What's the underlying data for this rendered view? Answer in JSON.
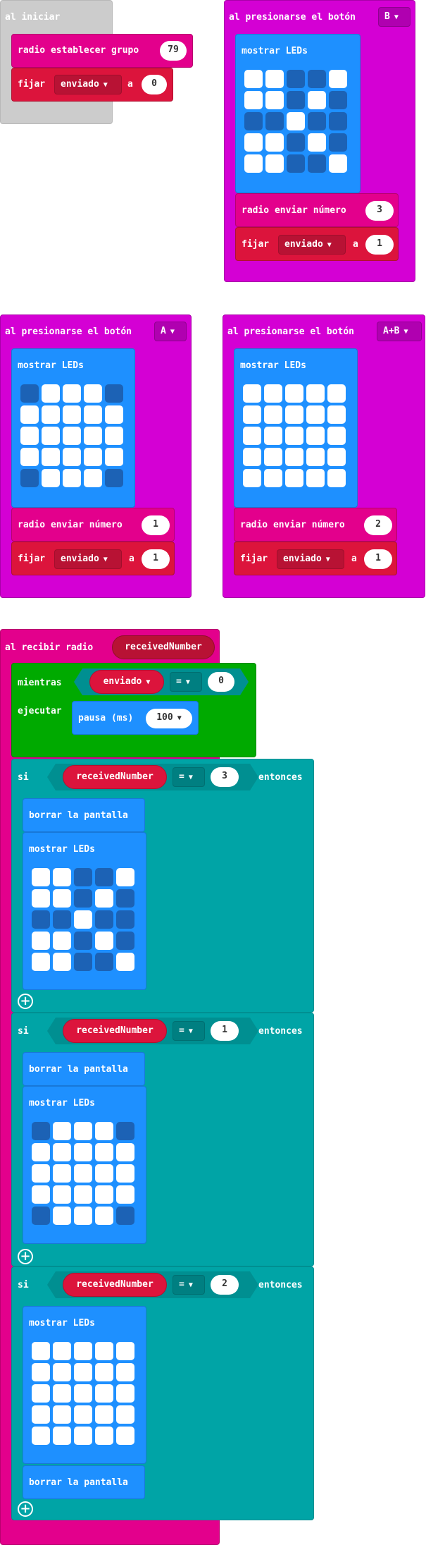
{
  "colors": {
    "event": "#d400d4",
    "radio": "#e3008c",
    "variables": "#dc143c",
    "basic": "#1e90ff",
    "loops": "#00aa00",
    "logic": "#00a4a6",
    "disabled": "#cccccc"
  },
  "on_start": {
    "title": "al iniciar",
    "set_group_label": "radio establecer grupo",
    "group_value": "79",
    "set_label": "fijar",
    "var_name": "enviado",
    "to_label": "a",
    "set_value": "0"
  },
  "button_b": {
    "title": "al presionarse el botón",
    "button": "B",
    "show_leds": "mostrar LEDs",
    "leds": [
      [
        1,
        1,
        0,
        0,
        1
      ],
      [
        1,
        1,
        0,
        1,
        0
      ],
      [
        0,
        0,
        1,
        0,
        0
      ],
      [
        1,
        1,
        0,
        1,
        0
      ],
      [
        1,
        1,
        0,
        0,
        1
      ]
    ],
    "send_label": "radio enviar número",
    "send_value": "3",
    "set_label": "fijar",
    "var_name": "enviado",
    "to_label": "a",
    "set_value": "1"
  },
  "button_a": {
    "title": "al presionarse el botón",
    "button": "A",
    "show_leds": "mostrar LEDs",
    "leds": [
      [
        0,
        1,
        1,
        1,
        0
      ],
      [
        1,
        1,
        1,
        1,
        1
      ],
      [
        1,
        1,
        1,
        1,
        1
      ],
      [
        1,
        1,
        1,
        1,
        1
      ],
      [
        0,
        1,
        1,
        1,
        0
      ]
    ],
    "send_label": "radio enviar número",
    "send_value": "1",
    "set_label": "fijar",
    "var_name": "enviado",
    "to_label": "a",
    "set_value": "1"
  },
  "button_ab": {
    "title": "al presionarse el botón",
    "button": "A+B",
    "show_leds": "mostrar LEDs",
    "leds": [
      [
        1,
        1,
        1,
        1,
        1
      ],
      [
        1,
        1,
        1,
        1,
        1
      ],
      [
        1,
        1,
        1,
        1,
        1
      ],
      [
        1,
        1,
        1,
        1,
        1
      ],
      [
        1,
        1,
        1,
        1,
        1
      ]
    ],
    "send_label": "radio enviar número",
    "send_value": "2",
    "set_label": "fijar",
    "var_name": "enviado",
    "to_label": "a",
    "set_value": "1"
  },
  "on_receive": {
    "title": "al recibir radio",
    "param": "receivedNumber",
    "while_label": "mientras",
    "while_var": "enviado",
    "while_op": "=",
    "while_value": "0",
    "do_label": "ejecutar",
    "pause_label": "pausa (ms)",
    "pause_value": "100",
    "if1": {
      "if_label": "si",
      "var": "receivedNumber",
      "op": "=",
      "value": "3",
      "then_label": "entonces",
      "clear_label": "borrar la pantalla",
      "show_leds": "mostrar LEDs",
      "leds": [
        [
          1,
          1,
          0,
          0,
          1
        ],
        [
          1,
          1,
          0,
          1,
          0
        ],
        [
          0,
          0,
          1,
          0,
          0
        ],
        [
          1,
          1,
          0,
          1,
          0
        ],
        [
          1,
          1,
          0,
          0,
          1
        ]
      ]
    },
    "if2": {
      "if_label": "si",
      "var": "receivedNumber",
      "op": "=",
      "value": "1",
      "then_label": "entonces",
      "clear_label": "borrar la pantalla",
      "show_leds": "mostrar LEDs",
      "leds": [
        [
          0,
          1,
          1,
          1,
          0
        ],
        [
          1,
          1,
          1,
          1,
          1
        ],
        [
          1,
          1,
          1,
          1,
          1
        ],
        [
          1,
          1,
          1,
          1,
          1
        ],
        [
          0,
          1,
          1,
          1,
          0
        ]
      ]
    },
    "if3": {
      "if_label": "si",
      "var": "receivedNumber",
      "op": "=",
      "value": "2",
      "then_label": "entonces",
      "show_leds": "mostrar LEDs",
      "leds": [
        [
          1,
          1,
          1,
          1,
          1
        ],
        [
          1,
          1,
          1,
          1,
          1
        ],
        [
          1,
          1,
          1,
          1,
          1
        ],
        [
          1,
          1,
          1,
          1,
          1
        ],
        [
          1,
          1,
          1,
          1,
          1
        ]
      ],
      "clear_label": "borrar la pantalla"
    }
  }
}
